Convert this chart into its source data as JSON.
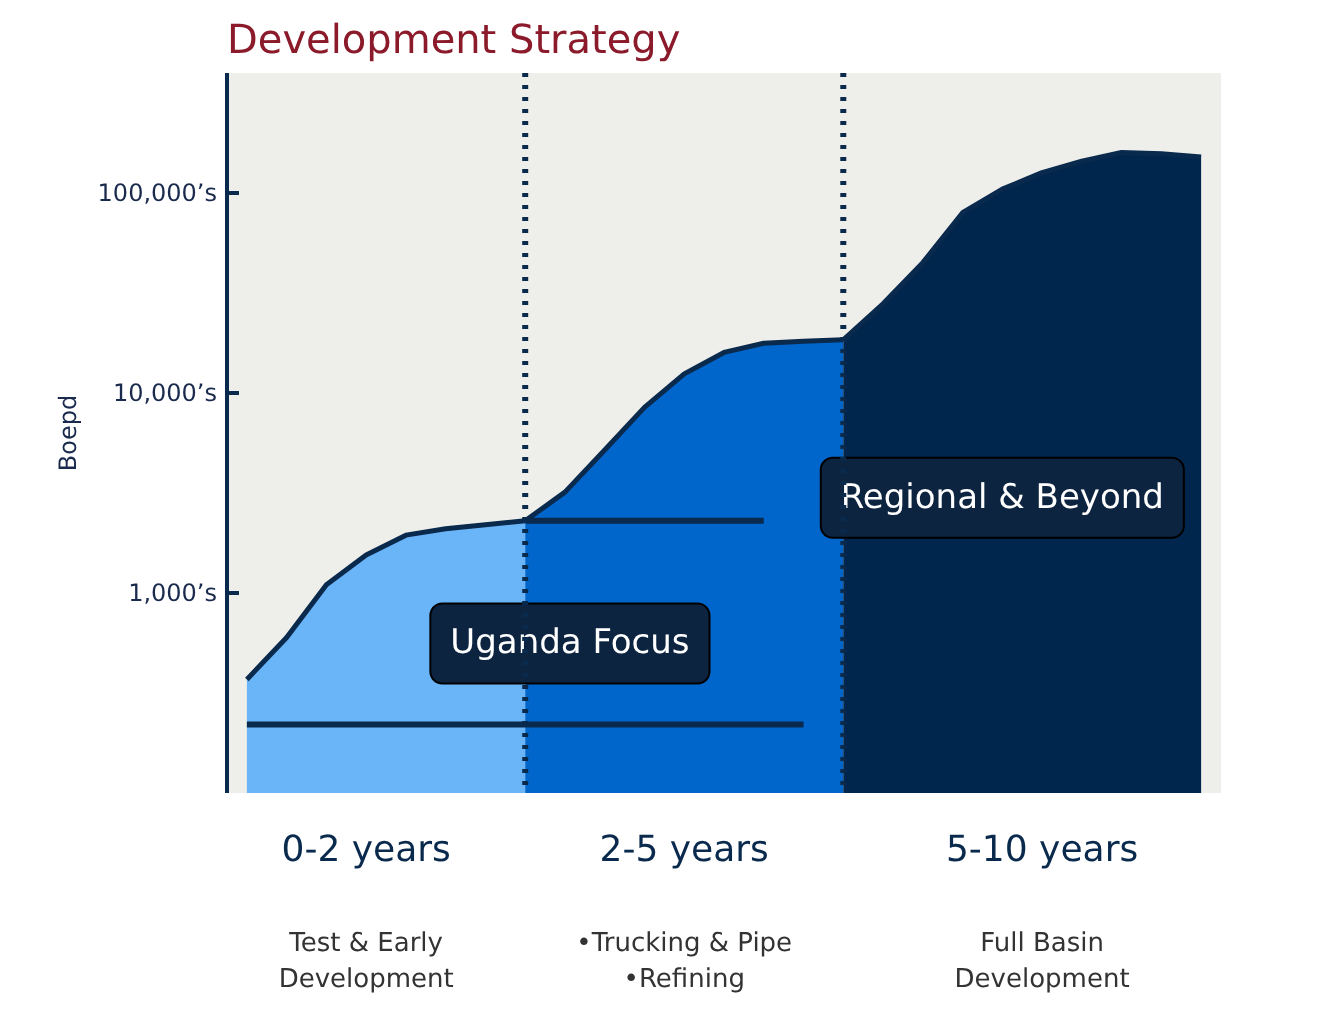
{
  "chart_data": {
    "type": "area",
    "title": "Development Strategy",
    "ylabel": "Boepd",
    "log": "y",
    "grid": false,
    "categories": [
      null,
      null,
      null,
      "0-2 years",
      null,
      null,
      null,
      null,
      null,
      null,
      null,
      "2-5 years",
      null,
      null,
      null,
      null,
      null,
      null,
      null,
      null,
      "5-10 years",
      null,
      null,
      null,
      null
    ],
    "ylim": [
      100,
      400000
    ],
    "yticks": [
      {
        "value": 1000,
        "label": "1,000’s"
      },
      {
        "value": 10000,
        "label": "10,000’s"
      },
      {
        "value": 100000,
        "label": "100,000’s"
      }
    ],
    "series": [
      {
        "color": "#6ab4f8",
        "values": [
          370,
          600,
          1100,
          1550,
          1950,
          2100,
          2200,
          2300,
          null,
          null,
          null,
          null,
          null,
          null,
          null,
          null,
          null,
          null,
          null,
          null,
          null,
          null,
          null,
          null,
          null
        ]
      },
      {
        "color": "#0066cc",
        "values": [
          null,
          null,
          null,
          null,
          null,
          null,
          null,
          2300,
          3200,
          5200,
          8500,
          12500,
          16000,
          17800,
          18200,
          18500,
          null,
          null,
          null,
          null,
          null,
          null,
          null,
          null,
          null
        ]
      },
      {
        "color": "#00264d",
        "values": [
          null,
          null,
          null,
          null,
          null,
          null,
          null,
          null,
          null,
          null,
          null,
          null,
          null,
          null,
          null,
          18500,
          28000,
          45000,
          80000,
          105000,
          127000,
          145000,
          160000,
          158000,
          152000
        ]
      },
      {
        "type": "line",
        "color": "#0a2a4d",
        "values": [
          220,
          220,
          220,
          220,
          220,
          220,
          220,
          220,
          220,
          220,
          220,
          220,
          220,
          220,
          220,
          null,
          null,
          null,
          null,
          null,
          null,
          null,
          null,
          null,
          null
        ]
      },
      {
        "type": "line",
        "color": "#0a2a4d",
        "values": [
          null,
          null,
          null,
          null,
          null,
          null,
          null,
          2300,
          2300,
          2300,
          2300,
          2300,
          2300,
          2300,
          null,
          null,
          null,
          null,
          null,
          null,
          null,
          null,
          null,
          null,
          null
        ]
      }
    ],
    "annotations": [
      "Uganda Focus",
      "Regional & Beyond",
      "Test & Early\nDevelopment",
      "•Trucking & Pipe\n•Refining",
      "Full Basin\nDevelopment"
    ]
  }
}
